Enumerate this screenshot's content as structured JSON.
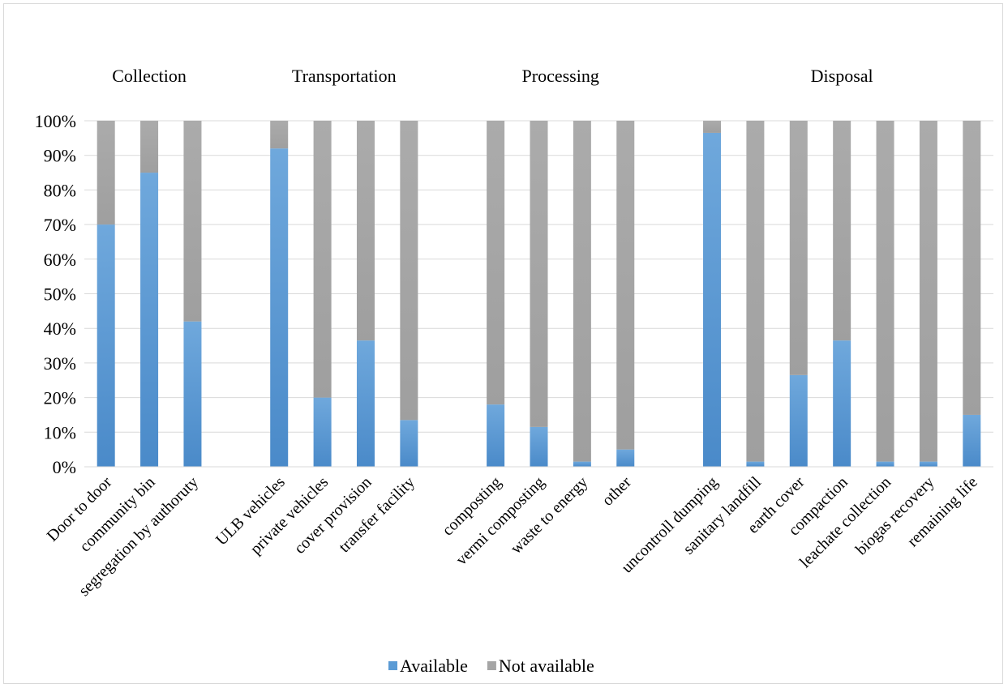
{
  "chart_data": {
    "type": "bar",
    "stacked": true,
    "percent": true,
    "groups": [
      {
        "name": "Collection",
        "categories": [
          "Door to door",
          "community bin",
          "segregation by authoruty"
        ]
      },
      {
        "name": "Transportation",
        "categories": [
          "ULB vehicles",
          "private vehicles",
          "cover provision",
          "transfer facility"
        ]
      },
      {
        "name": "Processing",
        "categories": [
          "composting",
          "vermi composting",
          "waste to energy",
          "other"
        ]
      },
      {
        "name": "Disposal",
        "categories": [
          "uncontroll dumping",
          "sanitary landfill",
          "earth cover",
          "compaction",
          "leachate collection",
          "biogas recovery",
          "remaining life"
        ]
      }
    ],
    "categories": [
      "Door to door",
      "community bin",
      "segregation by authoruty",
      "ULB vehicles",
      "private vehicles",
      "cover provision",
      "transfer facility",
      "composting",
      "vermi composting",
      "waste to energy",
      "other",
      "uncontroll dumping",
      "sanitary landfill",
      "earth cover",
      "compaction",
      "leachate collection",
      "biogas recovery",
      "remaining life"
    ],
    "series": [
      {
        "name": "Available",
        "color": "#5b9bd5",
        "values": [
          70,
          85,
          42,
          92,
          20,
          36.5,
          13.5,
          18,
          11.5,
          1.5,
          5,
          96.5,
          1.5,
          26.5,
          36.5,
          1.5,
          1.5,
          15
        ]
      },
      {
        "name": "Not available",
        "color": "#a5a5a5",
        "values": [
          30,
          15,
          58,
          8,
          80,
          63.5,
          86.5,
          82,
          88.5,
          98.5,
          95,
          3.5,
          98.5,
          73.5,
          63.5,
          98.5,
          98.5,
          85
        ]
      }
    ],
    "y_ticks": [
      "0%",
      "10%",
      "20%",
      "30%",
      "40%",
      "50%",
      "60%",
      "70%",
      "80%",
      "90%",
      "100%"
    ],
    "ylim": [
      0,
      100
    ],
    "grid": true,
    "legend_position": "bottom"
  }
}
